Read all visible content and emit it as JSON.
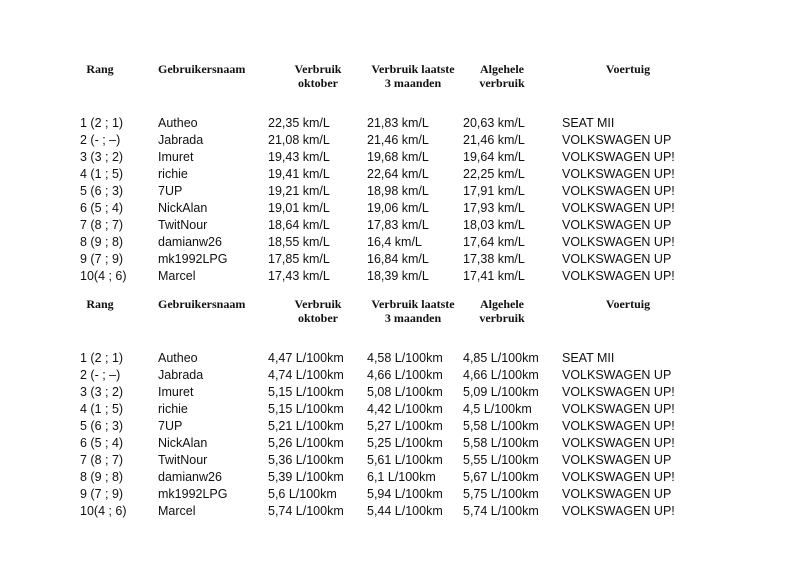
{
  "headers": [
    "Rang",
    "Gebruikersnaam",
    "Verbruik oktober",
    "Verbruik laatste 3 maanden",
    "Algehele verbruik",
    "Voertuig"
  ],
  "header_lines": {
    "rang": "Rang",
    "naam": "Gebruikersnaam",
    "oktober_1": "Verbruik",
    "oktober_2": "oktober",
    "laatste_1": "Verbruik laatste",
    "laatste_2": "3 maanden",
    "algehele_1": "Algehele",
    "algehele_2": "verbruik",
    "voertuig": "Voertuig"
  },
  "tables": [
    {
      "rows": [
        [
          "1 (2 ; 1)",
          "Autheo",
          "22,35 km/L",
          "21,83 km/L",
          "20,63 km/L",
          "SEAT MII"
        ],
        [
          "2 (- ; –)",
          "Jabrada",
          "21,08 km/L",
          "21,46 km/L",
          "21,46 km/L",
          "VOLKSWAGEN UP"
        ],
        [
          "3 (3 ; 2)",
          "Imuret",
          "19,43 km/L",
          "19,68 km/L",
          "19,64 km/L",
          "VOLKSWAGEN UP!"
        ],
        [
          "4 (1 ; 5)",
          "richie",
          "19,41 km/L",
          "22,64 km/L",
          "22,25 km/L",
          "VOLKSWAGEN UP!"
        ],
        [
          "5 (6 ; 3)",
          "7UP",
          "19,21 km/L",
          "18,98 km/L",
          "17,91 km/L",
          "VOLKSWAGEN UP!"
        ],
        [
          "6 (5 ; 4)",
          "NickAlan",
          "19,01 km/L",
          "19,06 km/L",
          "17,93 km/L",
          "VOLKSWAGEN UP!"
        ],
        [
          "7 (8 ; 7)",
          "TwitNour",
          "18,64 km/L",
          "17,83 km/L",
          "18,03 km/L",
          "VOLKSWAGEN UP"
        ],
        [
          "8 (9 ; 8)",
          "damianw26",
          "18,55 km/L",
          "16,4 km/L",
          "17,64 km/L",
          "VOLKSWAGEN UP!"
        ],
        [
          "9 (7 ; 9)",
          "mk1992LPG",
          "17,85 km/L",
          "16,84 km/L",
          "17,38 km/L",
          "VOLKSWAGEN UP"
        ],
        [
          "10(4 ; 6)",
          "Marcel",
          "17,43 km/L",
          "18,39 km/L",
          "17,41 km/L",
          "VOLKSWAGEN UP!"
        ]
      ]
    },
    {
      "rows": [
        [
          "1 (2 ; 1)",
          "Autheo",
          "4,47 L/100km",
          "4,58 L/100km",
          "4,85 L/100km",
          "SEAT MII"
        ],
        [
          "2 (- ; –)",
          "Jabrada",
          "4,74 L/100km",
          "4,66 L/100km",
          "4,66 L/100km",
          "VOLKSWAGEN UP"
        ],
        [
          "3 (3 ; 2)",
          "Imuret",
          "5,15 L/100km",
          "5,08 L/100km",
          "5,09 L/100km",
          "VOLKSWAGEN UP!"
        ],
        [
          "4 (1 ; 5)",
          "richie",
          "5,15 L/100km",
          "4,42 L/100km",
          "4,5 L/100km",
          "VOLKSWAGEN UP!"
        ],
        [
          "5 (6 ; 3)",
          "7UP",
          "5,21 L/100km",
          "5,27 L/100km",
          "5,58 L/100km",
          "VOLKSWAGEN UP!"
        ],
        [
          "6 (5 ; 4)",
          "NickAlan",
          "5,26 L/100km",
          "5,25 L/100km",
          "5,58 L/100km",
          "VOLKSWAGEN UP!"
        ],
        [
          "7 (8 ; 7)",
          "TwitNour",
          "5,36 L/100km",
          "5,61 L/100km",
          "5,55 L/100km",
          "VOLKSWAGEN UP"
        ],
        [
          "8 (9 ; 8)",
          "damianw26",
          "5,39 L/100km",
          "6,1 L/100km",
          "5,67 L/100km",
          "VOLKSWAGEN UP!"
        ],
        [
          "9 (7 ; 9)",
          "mk1992LPG",
          "5,6 L/100km",
          "5,94 L/100km",
          "5,75 L/100km",
          "VOLKSWAGEN UP"
        ],
        [
          "10(4 ; 6)",
          "Marcel",
          "5,74 L/100km",
          "5,44 L/100km",
          "5,74 L/100km",
          "VOLKSWAGEN UP!"
        ]
      ]
    }
  ]
}
